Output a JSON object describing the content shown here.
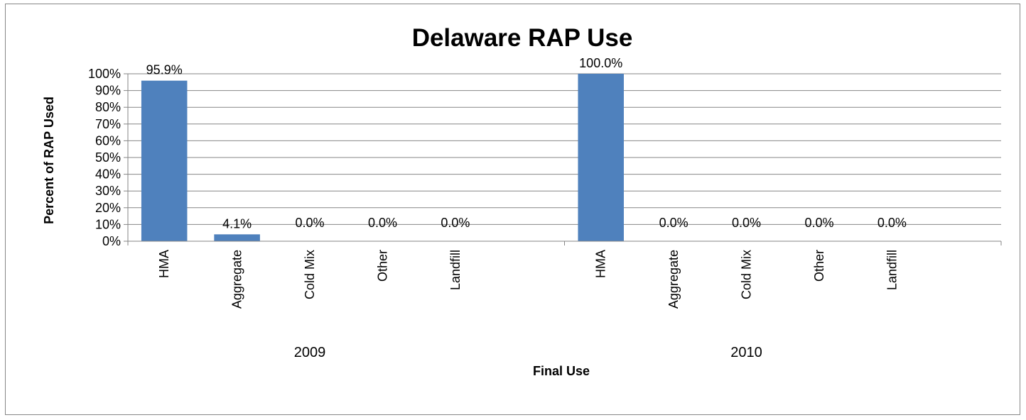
{
  "chart_data": {
    "type": "bar",
    "title": "Delaware RAP Use",
    "xlabel": "Final Use",
    "ylabel": "Percent of RAP Used",
    "ylim": [
      0,
      100
    ],
    "yticks": [
      "0%",
      "10%",
      "20%",
      "30%",
      "40%",
      "50%",
      "60%",
      "70%",
      "80%",
      "90%",
      "100%"
    ],
    "grid": true,
    "legend": "none",
    "bar_color": "#4F81BD",
    "groups": [
      "2009",
      "2010"
    ],
    "categories": [
      "HMA",
      "Aggregate",
      "Cold Mix",
      "Other",
      "Landfill"
    ],
    "series": [
      {
        "group": "2009",
        "values": [
          95.9,
          4.1,
          0.0,
          0.0,
          0.0
        ],
        "labels": [
          "95.9%",
          "4.1%",
          "0.0%",
          "0.0%",
          "0.0%"
        ]
      },
      {
        "group": "2010",
        "values": [
          100.0,
          0.0,
          0.0,
          0.0,
          0.0
        ],
        "labels": [
          "100.0%",
          "0.0%",
          "0.0%",
          "0.0%",
          "0.0%"
        ]
      }
    ]
  }
}
